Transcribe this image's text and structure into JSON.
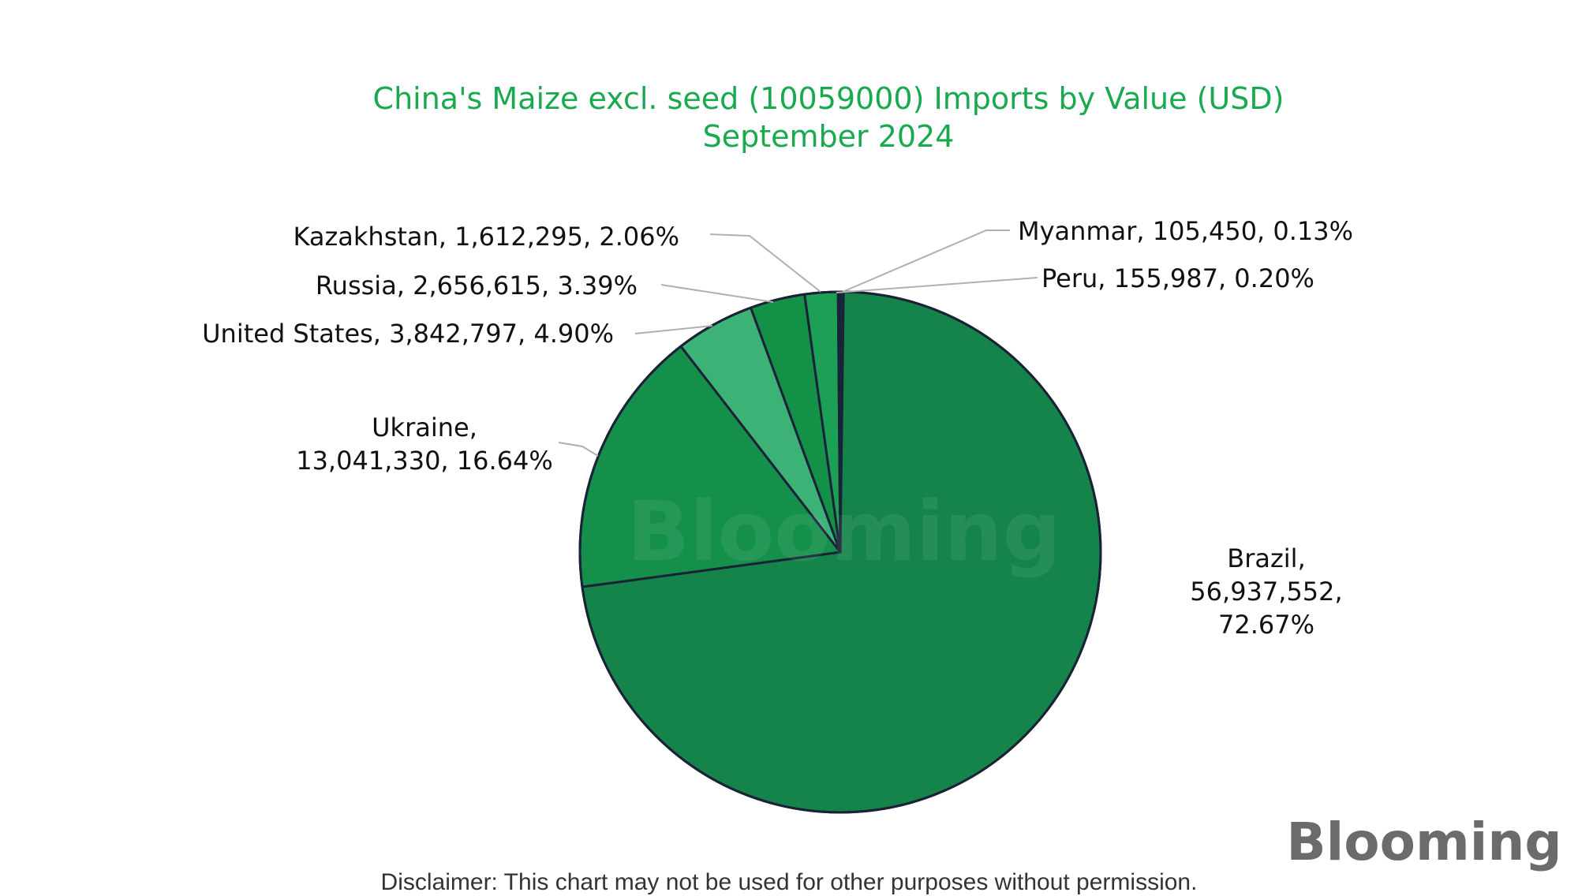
{
  "chart_data": {
    "type": "pie",
    "title": "China's Maize excl. seed (10059000) Imports by Value (USD)",
    "subtitle": "September 2024",
    "slices": [
      {
        "name": "Peru",
        "value": 155987,
        "percent": 0.2,
        "label": "Peru, 155,987, 0.20%",
        "color": "#1a2e47"
      },
      {
        "name": "Brazil",
        "value": 56937552,
        "percent": 72.67,
        "label_lines": [
          "Brazil,",
          "56,937,552,",
          "72.67%"
        ],
        "color": "#14844a"
      },
      {
        "name": "Ukraine",
        "value": 13041330,
        "percent": 16.64,
        "label_lines": [
          "Ukraine,",
          "13,041,330, 16.64%"
        ],
        "color": "#14904a"
      },
      {
        "name": "United States",
        "value": 3842797,
        "percent": 4.9,
        "label": "United States, 3,842,797, 4.90%",
        "color": "#3db277"
      },
      {
        "name": "Russia",
        "value": 2656615,
        "percent": 3.39,
        "label": "Russia, 2,656,615, 3.39%",
        "color": "#139147"
      },
      {
        "name": "Kazakhstan",
        "value": 1612295,
        "percent": 2.06,
        "label": "Kazakhstan, 1,612,295, 2.06%",
        "color": "#1ba056"
      },
      {
        "name": "Myanmar",
        "value": 105450,
        "percent": 0.13,
        "label": "Myanmar, 105,450, 0.13%",
        "color": "#1a2e47"
      }
    ],
    "start_angle_deg": 0,
    "direction": "clockwise",
    "legend": "none"
  },
  "watermark": "Blooming",
  "logo": "Blooming",
  "disclaimer": "Disclaimer: This chart may not be used for other purposes without permission.",
  "colors": {
    "title": "#19a94f",
    "outline": "#1a2238",
    "leader": "#b0b0b0",
    "logo": "#6b6b6b",
    "logo_accent": "#1fb24a"
  }
}
